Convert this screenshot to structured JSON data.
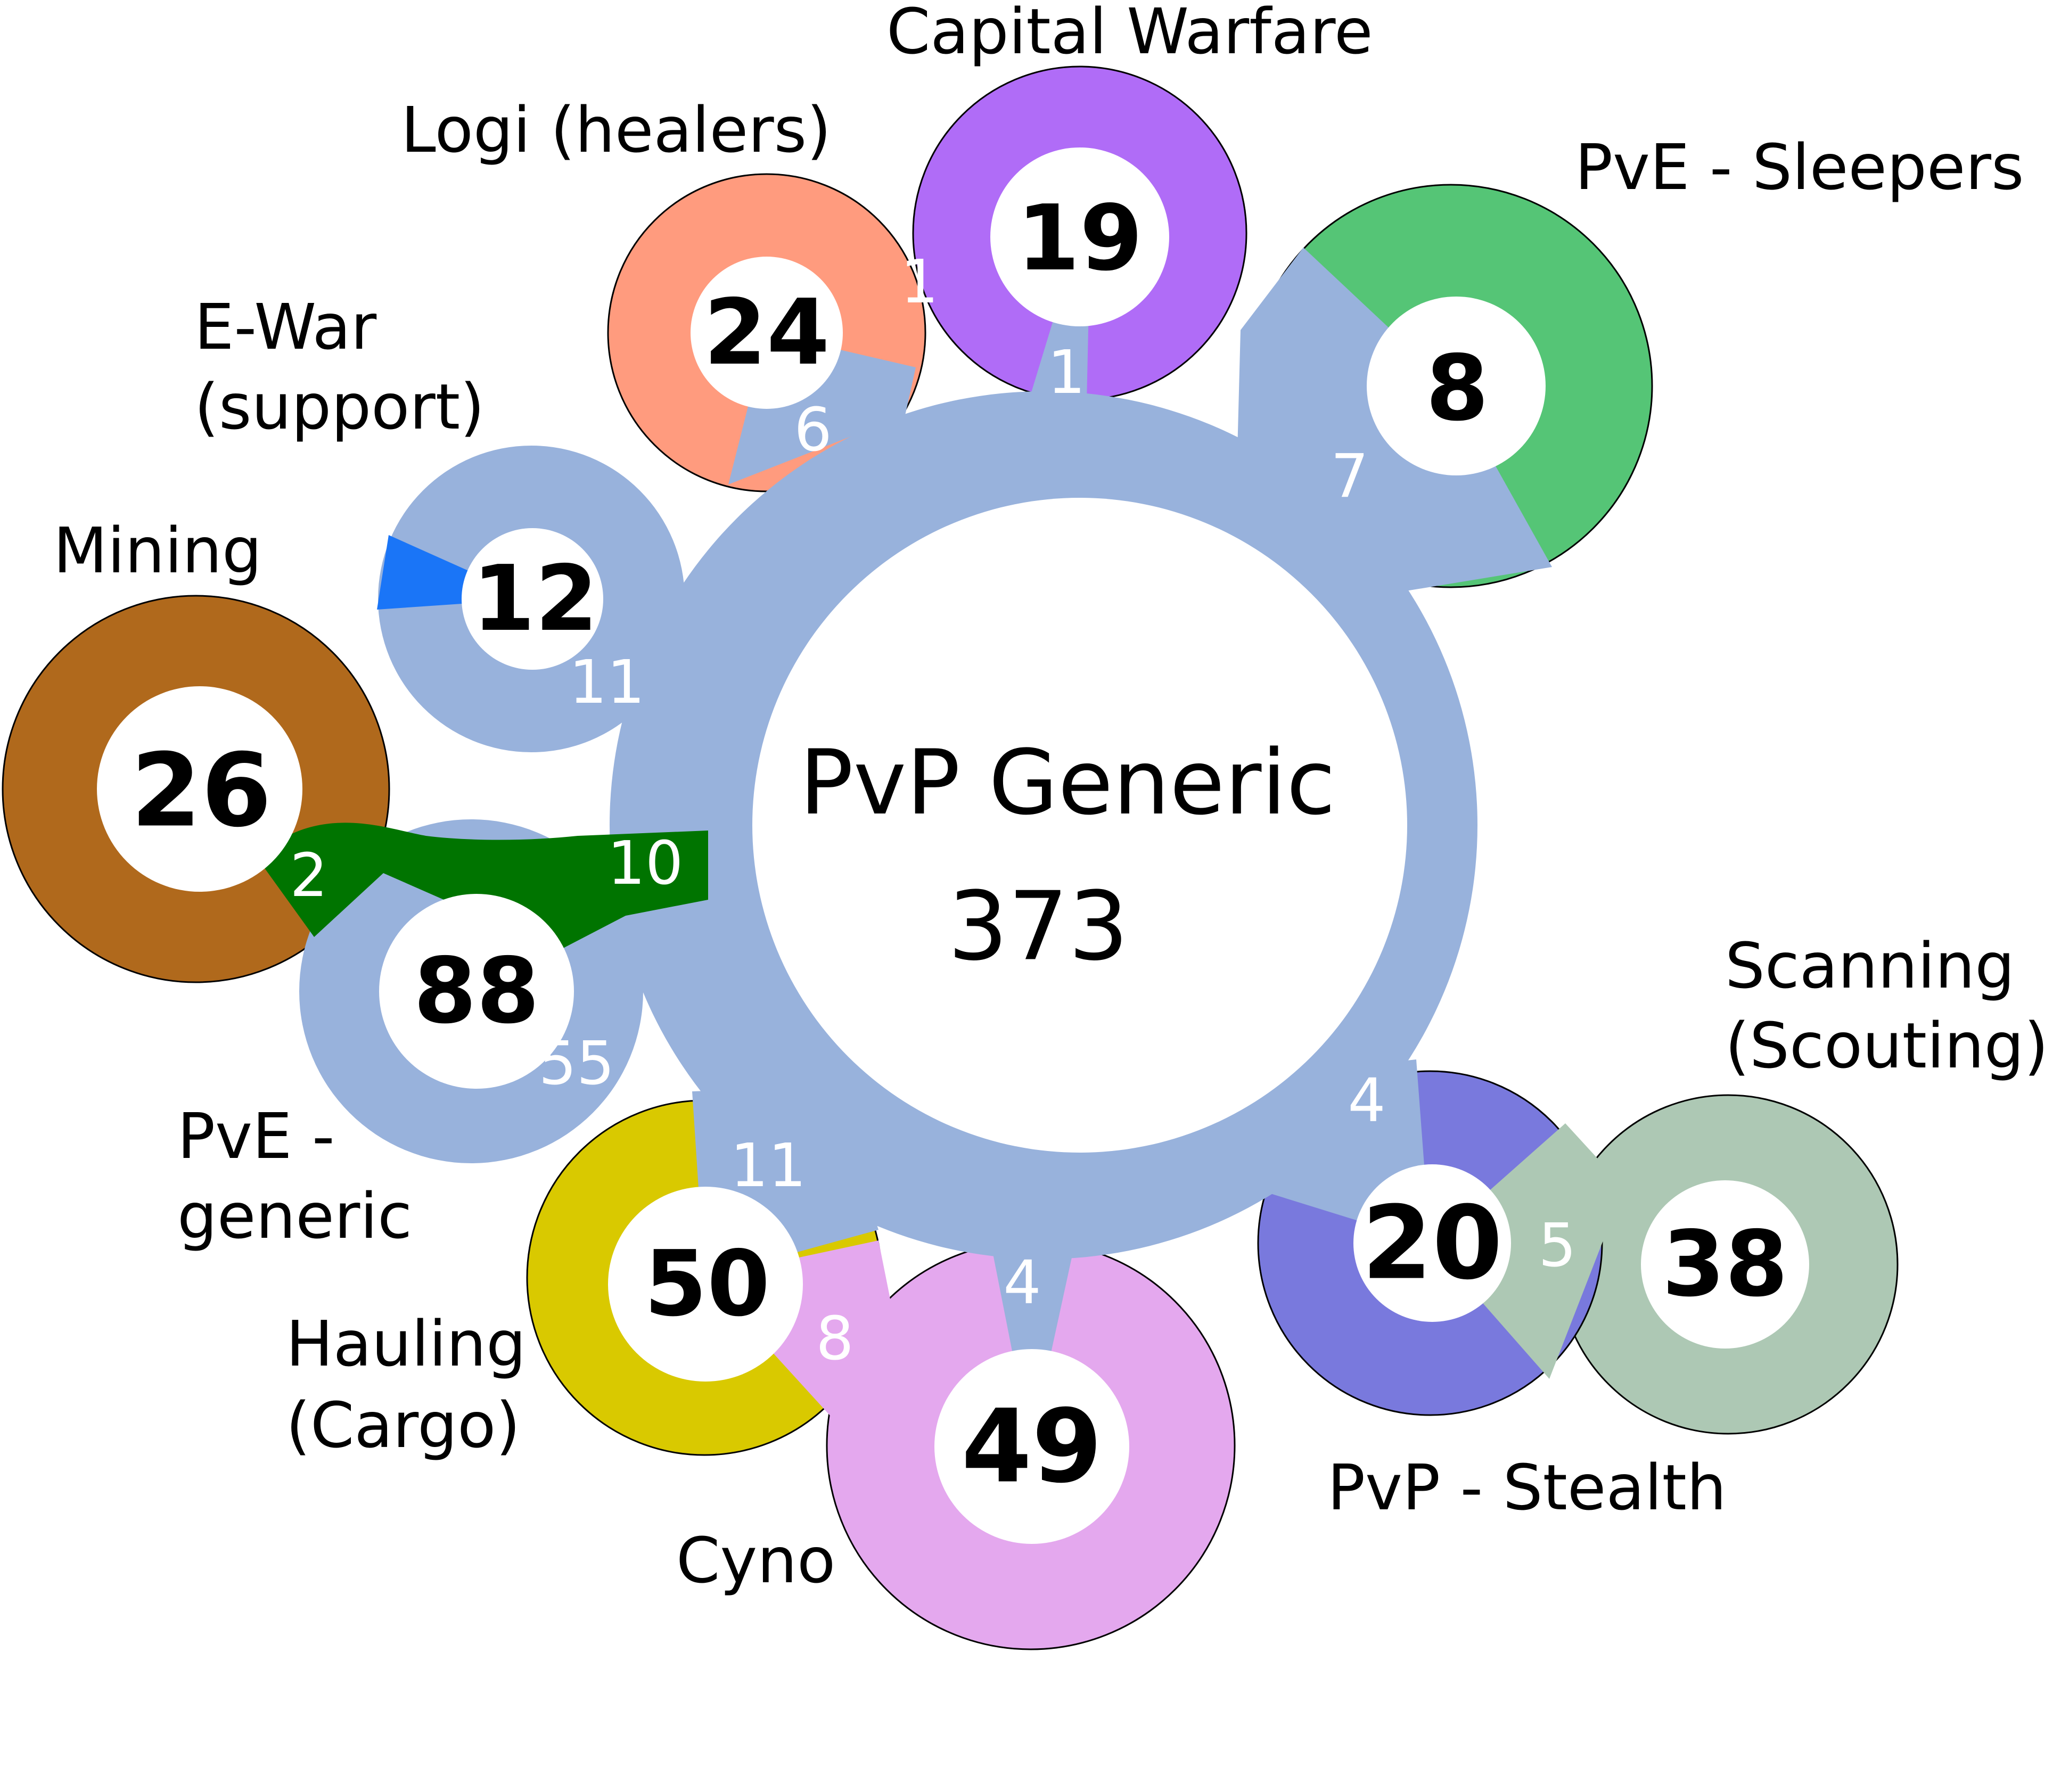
{
  "center": {
    "name": "PvP Generic",
    "count": "373"
  },
  "colors": {
    "hub": "#98b2dc",
    "capital": "#b06cf7",
    "logi": "#ff9b7e",
    "sleepers": "#55c576",
    "ewar": "#1a75f7",
    "mining": "#b0691c",
    "pve_generic": "#007400",
    "hauling": "#d9c900",
    "cyno": "#e4a8ee",
    "stealth": "#7979dd",
    "scanning": "#adc8b4"
  },
  "nodes": {
    "capital": {
      "name": "Capital Warfare",
      "count": "19"
    },
    "logi": {
      "name": "Logi (healers)",
      "count": "24"
    },
    "sleepers": {
      "name": "PvE - Sleepers",
      "count": "8"
    },
    "ewar": {
      "name_line1": "E-War",
      "name_line2": "(support)",
      "count": "12"
    },
    "mining": {
      "name": "Mining",
      "count": "26"
    },
    "pve_generic": {
      "name_line1": "PvE -",
      "name_line2": "generic",
      "count": "88"
    },
    "hauling": {
      "name_line1": "Hauling",
      "name_line2": "(Cargo)",
      "count": "50"
    },
    "cyno": {
      "name": "Cyno",
      "count": "49"
    },
    "stealth": {
      "name": "PvP - Stealth",
      "count": "20"
    },
    "scanning": {
      "name_line1": "Scanning",
      "name_line2": "(Scouting)",
      "count": "38"
    }
  },
  "links": {
    "hub_capital": "1",
    "logi_capital": "1",
    "hub_logi": "6",
    "hub_sleepers": "7",
    "hub_ewar": "11",
    "hub_pve_generic_green": "10",
    "mining_pve_generic": "2",
    "hub_pve_generic": "55",
    "hub_hauling": "11",
    "hauling_cyno": "8",
    "hub_cyno": "4",
    "hub_stealth": "4",
    "stealth_scanning": "5"
  }
}
